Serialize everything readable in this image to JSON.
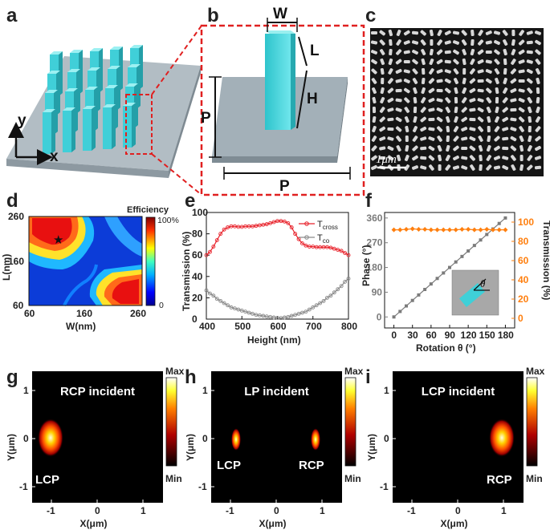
{
  "panel_labels": [
    "a",
    "b",
    "c",
    "d",
    "e",
    "f",
    "g",
    "h",
    "i"
  ],
  "panel_a": {
    "axis_x": "x",
    "axis_y": "y"
  },
  "panel_b": {
    "dim_w": "W",
    "dim_l": "L",
    "dim_h": "H",
    "dim_p_vertical": "P",
    "dim_p_horizontal": "P"
  },
  "panel_c": {
    "scale_bar": "1μm"
  },
  "panel_d": {
    "title": "Efficiency",
    "cb_max": "100%",
    "cb_min": "0",
    "xlabel": "W(nm)",
    "ylabel": "L(nm)",
    "xticks": [
      "60",
      "160",
      "260"
    ],
    "yticks": [
      "260",
      "160",
      "60"
    ],
    "marker": "★"
  },
  "colors": {
    "cross": "#e8222b",
    "co": "#8a8a8a",
    "phase": "#7b7b7b",
    "trans": "#ff7f0e",
    "pillar": "#3fd0d8"
  },
  "chart_data": [
    {
      "panel": "e",
      "type": "line",
      "xlabel": "Height (nm)",
      "ylabel": "Transmission (%)",
      "xlim": [
        400,
        800
      ],
      "ylim": [
        0,
        100
      ],
      "xticks": [
        "400",
        "500",
        "600",
        "700",
        "800"
      ],
      "yticks": [
        "0",
        "20",
        "40",
        "60",
        "80",
        "100"
      ],
      "legend": [
        {
          "name": "T",
          "sub": "cross"
        },
        {
          "name": "T",
          "sub": "co"
        }
      ],
      "series": [
        {
          "name": "T_cross",
          "x": [
            400,
            410,
            420,
            430,
            440,
            450,
            460,
            470,
            480,
            490,
            500,
            510,
            520,
            530,
            540,
            550,
            560,
            570,
            580,
            590,
            600,
            610,
            620,
            630,
            640,
            650,
            660,
            670,
            680,
            690,
            700,
            710,
            720,
            730,
            740,
            750,
            760,
            770,
            780,
            790,
            800
          ],
          "y": [
            60,
            63,
            68,
            74,
            80,
            84,
            86,
            87,
            87,
            86.5,
            86.5,
            87,
            87,
            87,
            87.5,
            88,
            88.5,
            89,
            90,
            91,
            92,
            92,
            91.5,
            90,
            86,
            80,
            75,
            71,
            69,
            68,
            68,
            67.5,
            67.5,
            67.5,
            67.5,
            67,
            66,
            65,
            64,
            62,
            60
          ]
        },
        {
          "name": "T_co",
          "x": [
            400,
            410,
            420,
            430,
            440,
            450,
            460,
            470,
            480,
            490,
            500,
            510,
            520,
            530,
            540,
            550,
            560,
            570,
            580,
            590,
            600,
            610,
            620,
            630,
            640,
            650,
            660,
            670,
            680,
            690,
            700,
            710,
            720,
            730,
            740,
            750,
            760,
            770,
            780,
            790,
            800
          ],
          "y": [
            27,
            24,
            22,
            19,
            17,
            15,
            13,
            11,
            10,
            9,
            8,
            7,
            6,
            5,
            4,
            3.5,
            3,
            2.5,
            2,
            1.5,
            1.2,
            1,
            1.5,
            2,
            3,
            4,
            5,
            6,
            7,
            9,
            11,
            13,
            15,
            17,
            20,
            22,
            25,
            28,
            31,
            35,
            38
          ]
        }
      ]
    },
    {
      "panel": "f",
      "type": "line",
      "xlabel": "Rotation θ (°)",
      "ylabel_left": "Phase (°)",
      "ylabel_right": "Transmission (%)",
      "xlim": [
        -15,
        195
      ],
      "ylim_left": [
        -40,
        380
      ],
      "ylim_right": [
        -10,
        110
      ],
      "xticks": [
        "0",
        "30",
        "60",
        "90",
        "120",
        "150",
        "180"
      ],
      "yticks_left": [
        "0",
        "90",
        "180",
        "270",
        "360"
      ],
      "yticks_right": [
        "0",
        "20",
        "40",
        "60",
        "80",
        "100"
      ],
      "inset_label": "θ",
      "series": [
        {
          "name": "Phase",
          "axis": "left",
          "x": [
            0,
            10,
            20,
            30,
            40,
            50,
            60,
            70,
            80,
            90,
            100,
            110,
            120,
            130,
            140,
            150,
            160,
            170,
            180
          ],
          "y": [
            0,
            20,
            40,
            60,
            80,
            100,
            120,
            140,
            160,
            180,
            200,
            220,
            240,
            260,
            280,
            300,
            320,
            340,
            360
          ]
        },
        {
          "name": "Transmission",
          "axis": "right",
          "x": [
            0,
            10,
            20,
            30,
            40,
            50,
            60,
            70,
            80,
            90,
            100,
            110,
            120,
            130,
            140,
            150,
            160,
            170,
            180
          ],
          "y": [
            92,
            92,
            92.5,
            93,
            92.5,
            92.5,
            92,
            92,
            92,
            92,
            92,
            92.5,
            92.5,
            92,
            92,
            92.5,
            92,
            92,
            92
          ]
        }
      ]
    }
  ],
  "focal_panels": [
    {
      "panel": "g",
      "title": "RCP incident",
      "spots": [
        "LCP"
      ],
      "xlabel": "X(μm)",
      "ylabel": "Y(μm)",
      "xticks": [
        "-1",
        "0",
        "1"
      ],
      "yticks": [
        "1",
        "0",
        "-1"
      ],
      "cb_max": "Max",
      "cb_min": "Min"
    },
    {
      "panel": "h",
      "title": "LP incident",
      "spots": [
        "LCP",
        "RCP"
      ],
      "xlabel": "X(μm)",
      "ylabel": "Y(μm)",
      "xticks": [
        "-1",
        "0",
        "1"
      ],
      "yticks": [
        "1",
        "0",
        "-1"
      ],
      "cb_max": "Max",
      "cb_min": "Min"
    },
    {
      "panel": "i",
      "title": "LCP incident",
      "spots": [
        "RCP"
      ],
      "xlabel": "X(μm)",
      "ylabel": "Y(μm)",
      "xticks": [
        "-1",
        "0",
        "1"
      ],
      "yticks": [
        "1",
        "0",
        "-1"
      ],
      "cb_max": "Max",
      "cb_min": "Min"
    }
  ]
}
